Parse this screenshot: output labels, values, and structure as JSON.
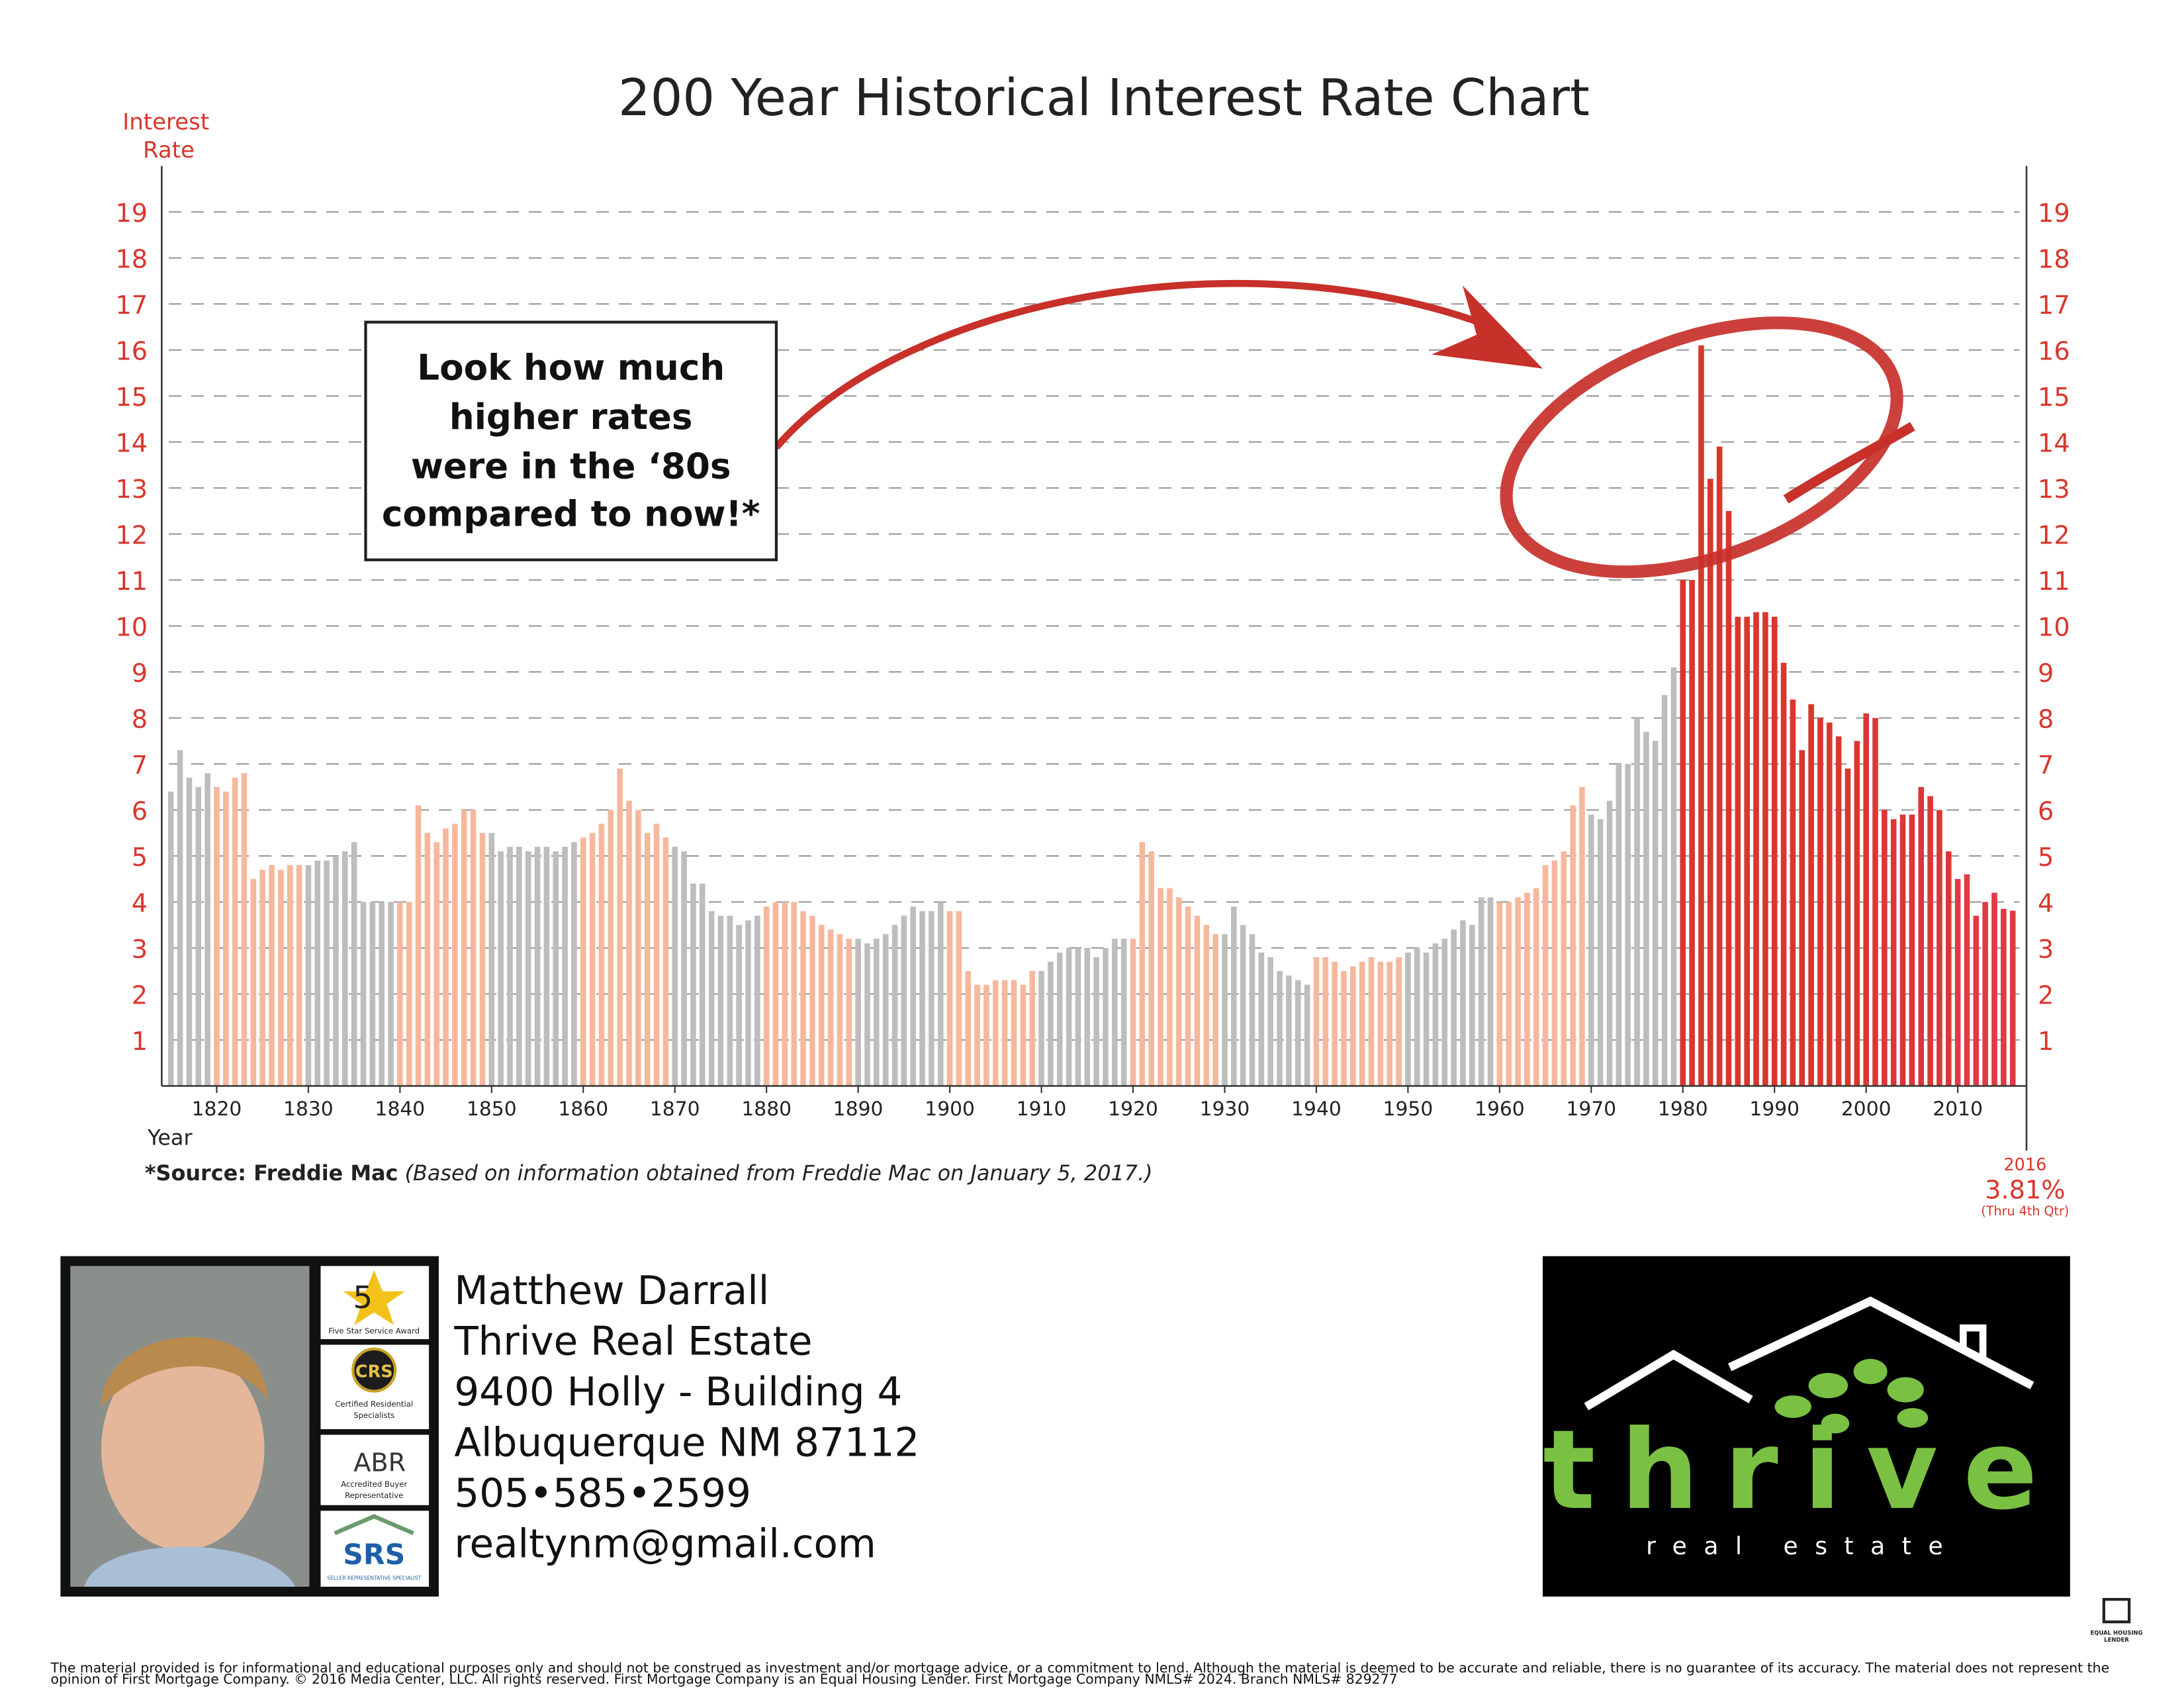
{
  "header": {
    "title": "200 Year Historical Interest Rate Chart"
  },
  "chart_data": {
    "type": "bar",
    "y_axis_label": [
      "Interest",
      "Rate"
    ],
    "x_axis_label": "Year",
    "xlim": [
      1814,
      2017.5
    ],
    "xticks": [
      1820,
      1830,
      1840,
      1850,
      1860,
      1870,
      1880,
      1890,
      1900,
      1910,
      1920,
      1930,
      1940,
      1950,
      1960,
      1970,
      1980,
      1990,
      2000,
      2010
    ],
    "ylim": [
      0,
      20
    ],
    "yticks": [
      1,
      2,
      3,
      4,
      5,
      6,
      7,
      8,
      9,
      10,
      11,
      12,
      13,
      14,
      15,
      16,
      17,
      18,
      19
    ],
    "grid": true,
    "series": [
      {
        "color": "#bdbdbd",
        "x": [
          1815,
          1816,
          1817,
          1818,
          1819
        ],
        "values": [
          6.4,
          7.3,
          6.7,
          6.5,
          6.8
        ]
      },
      {
        "color": "#f5b89c",
        "x": [
          1820,
          1821,
          1822,
          1823,
          1824,
          1825,
          1826,
          1827,
          1828,
          1829
        ],
        "values": [
          6.5,
          6.4,
          6.7,
          6.8,
          4.5,
          4.7,
          4.8,
          4.7,
          4.8,
          4.8
        ]
      },
      {
        "color": "#bdbdbd",
        "x": [
          1830,
          1831,
          1832,
          1833,
          1834,
          1835,
          1836,
          1837,
          1838,
          1839
        ],
        "values": [
          4.8,
          4.9,
          4.9,
          5.0,
          5.1,
          5.3,
          4.0,
          4.0,
          4.0,
          4.0
        ]
      },
      {
        "color": "#f5b89c",
        "x": [
          1840,
          1841,
          1842,
          1843,
          1844,
          1845,
          1846,
          1847,
          1848,
          1849
        ],
        "values": [
          4.0,
          4.0,
          6.1,
          5.5,
          5.3,
          5.6,
          5.7,
          6.0,
          6.0,
          5.5
        ]
      },
      {
        "color": "#bdbdbd",
        "x": [
          1850,
          1851,
          1852,
          1853,
          1854,
          1855,
          1856,
          1857,
          1858,
          1859
        ],
        "values": [
          5.5,
          5.1,
          5.2,
          5.2,
          5.1,
          5.2,
          5.2,
          5.1,
          5.2,
          5.3
        ]
      },
      {
        "color": "#f5b89c",
        "x": [
          1860,
          1861,
          1862,
          1863,
          1864,
          1865,
          1866,
          1867,
          1868,
          1869
        ],
        "values": [
          5.4,
          5.5,
          5.7,
          6.0,
          6.9,
          6.2,
          6.0,
          5.5,
          5.7,
          5.4
        ]
      },
      {
        "color": "#bdbdbd",
        "x": [
          1870,
          1871,
          1872,
          1873,
          1874,
          1875,
          1876,
          1877,
          1878,
          1879
        ],
        "values": [
          5.2,
          5.1,
          4.4,
          4.4,
          3.8,
          3.7,
          3.7,
          3.5,
          3.6,
          3.7
        ]
      },
      {
        "color": "#f5b89c",
        "x": [
          1880,
          1881,
          1882,
          1883,
          1884,
          1885,
          1886,
          1887,
          1888,
          1889
        ],
        "values": [
          3.9,
          4.0,
          4.0,
          4.0,
          3.8,
          3.7,
          3.5,
          3.4,
          3.3,
          3.2
        ]
      },
      {
        "color": "#bdbdbd",
        "x": [
          1890,
          1891,
          1892,
          1893,
          1894,
          1895,
          1896,
          1897,
          1898,
          1899
        ],
        "values": [
          3.2,
          3.1,
          3.2,
          3.3,
          3.5,
          3.7,
          3.9,
          3.8,
          3.8,
          4.0
        ]
      },
      {
        "color": "#f5b89c",
        "x": [
          1900,
          1901,
          1902,
          1903,
          1904,
          1905,
          1906,
          1907,
          1908,
          1909
        ],
        "values": [
          3.8,
          3.8,
          2.5,
          2.2,
          2.2,
          2.3,
          2.3,
          2.3,
          2.2,
          2.5
        ]
      },
      {
        "color": "#bdbdbd",
        "x": [
          1910,
          1911,
          1912,
          1913,
          1914,
          1915,
          1916,
          1917,
          1918,
          1919
        ],
        "values": [
          2.5,
          2.7,
          2.9,
          3.0,
          3.0,
          3.0,
          2.8,
          3.0,
          3.2,
          3.2
        ]
      },
      {
        "color": "#f5b89c",
        "x": [
          1920,
          1921,
          1922,
          1923,
          1924,
          1925,
          1926,
          1927,
          1928,
          1929
        ],
        "values": [
          3.2,
          5.3,
          5.1,
          4.3,
          4.3,
          4.1,
          3.9,
          3.7,
          3.5,
          3.3
        ]
      },
      {
        "color": "#bdbdbd",
        "x": [
          1930,
          1931,
          1932,
          1933,
          1934,
          1935,
          1936,
          1937,
          1938,
          1939
        ],
        "values": [
          3.3,
          3.9,
          3.5,
          3.3,
          2.9,
          2.8,
          2.5,
          2.4,
          2.3,
          2.2
        ]
      },
      {
        "color": "#f5b89c",
        "x": [
          1940,
          1941,
          1942,
          1943,
          1944,
          1945,
          1946,
          1947,
          1948,
          1949
        ],
        "values": [
          2.8,
          2.8,
          2.7,
          2.5,
          2.6,
          2.7,
          2.8,
          2.7,
          2.7,
          2.8
        ]
      },
      {
        "color": "#bdbdbd",
        "x": [
          1950,
          1951,
          1952,
          1953,
          1954,
          1955,
          1956,
          1957,
          1958,
          1959
        ],
        "values": [
          2.9,
          3.0,
          2.9,
          3.1,
          3.2,
          3.4,
          3.6,
          3.5,
          4.1,
          4.1
        ]
      },
      {
        "color": "#f5b89c",
        "x": [
          1960,
          1961,
          1962,
          1963,
          1964,
          1965,
          1966,
          1967,
          1968,
          1969
        ],
        "values": [
          4.0,
          4.0,
          4.1,
          4.2,
          4.3,
          4.8,
          4.9,
          5.1,
          6.1,
          6.5
        ]
      },
      {
        "color": "#bdbdbd",
        "x": [
          1970,
          1971,
          1972,
          1973,
          1974,
          1975,
          1976,
          1977,
          1978,
          1979
        ],
        "values": [
          5.9,
          5.8,
          6.2,
          7.0,
          7.0,
          8.0,
          7.7,
          7.5,
          8.5,
          9.1
        ]
      },
      {
        "color": "#d9362d",
        "x": [
          1980,
          1981,
          1982,
          1983,
          1984,
          1985,
          1986,
          1987,
          1988,
          1989
        ],
        "values": [
          11.0,
          11.0,
          16.1,
          13.2,
          13.9,
          12.5,
          10.2,
          10.2,
          10.3,
          10.3
        ]
      },
      {
        "color": "#d9362d",
        "x": [
          1990,
          1991,
          1992,
          1993,
          1994,
          1995,
          1996,
          1997,
          1998,
          1999
        ],
        "values": [
          10.2,
          9.2,
          8.4,
          7.3,
          8.3,
          8.0,
          7.9,
          7.6,
          6.9,
          7.5
        ]
      },
      {
        "color": "#dc3637",
        "x": [
          2000,
          2001,
          2002,
          2003,
          2004,
          2005,
          2006,
          2007,
          2008,
          2009
        ],
        "values": [
          8.1,
          8.0,
          6.0,
          5.8,
          5.9,
          5.9,
          6.5,
          6.3,
          6.0,
          5.1
        ]
      },
      {
        "color": "#e03a44",
        "x": [
          2010,
          2011,
          2012,
          2013,
          2014,
          2015,
          2016
        ],
        "values": [
          4.5,
          4.6,
          3.7,
          4.0,
          4.2,
          3.85,
          3.81
        ]
      }
    ],
    "annotation": [
      "Look how much",
      "higher rates",
      "were in the ‘80s",
      "compared to now!*"
    ],
    "source": {
      "label": "*Source: Freddie Mac",
      "note": "(Based on information obtained from Freddie Mac on January 5, 2017.)"
    },
    "end_label": {
      "year": "2016",
      "value": "3.81%",
      "note": "(Thru 4th Qtr)"
    }
  },
  "agent": {
    "lines": [
      "Matthew Darrall",
      "Thrive Real Estate",
      "9400 Holly - Building 4",
      "Albuquerque NM 87112",
      "505•585•2599",
      "realtynm@gmail.com"
    ]
  },
  "badges": {
    "five_star": {
      "mark": "5",
      "caption": "Five Star Service Award"
    },
    "crs": {
      "mark": "CRS",
      "caption": [
        "Certified Residential",
        "Specialists"
      ]
    },
    "abr": {
      "mark": "ABR",
      "caption": [
        "Accredited Buyer",
        "Representative"
      ]
    },
    "srs": {
      "mark": "SRS",
      "caption": "SELLER REPRESENTATIVE SPECIALIST"
    }
  },
  "logo": {
    "name": "thrive",
    "tagline": "real estate"
  },
  "equal_housing": [
    "EQUAL HOUSING",
    "LENDER"
  ],
  "disclaimer": [
    "The material provided is for informational and educational purposes only and should not be construed as investment and/or mortgage advice, or a commitment to lend. Although the material is deemed to be accurate and reliable, there is no guarantee of its accuracy. The material does not represent the",
    "opinion of First Mortgage Company. © 2016 Media Center, LLC. All rights reserved. First Mortgage Company is an Equal Housing Lender. First Mortgage Company NMLS# 2024. Branch NMLS# 829277"
  ]
}
